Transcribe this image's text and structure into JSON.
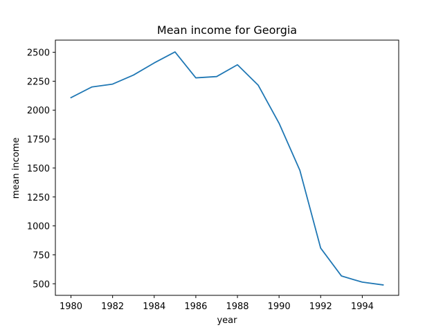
{
  "chart_data": {
    "type": "line",
    "title": "Mean income for Georgia",
    "xlabel": "year",
    "ylabel": "mean income",
    "xlim": [
      1979.25,
      1995.75
    ],
    "ylim": [
      400,
      2605
    ],
    "xticks": [
      1980,
      1982,
      1984,
      1986,
      1988,
      1990,
      1992,
      1994
    ],
    "yticks": [
      500,
      750,
      1000,
      1250,
      1500,
      1750,
      2000,
      2250,
      2500
    ],
    "grid": false,
    "line_color": "#1f77b4",
    "series": [
      {
        "x": [
          1980,
          1981,
          1982,
          1983,
          1984,
          1985,
          1986,
          1987,
          1988,
          1989,
          1990,
          1991,
          1992,
          1993,
          1994,
          1995
        ],
        "values": [
          2108,
          2200,
          2225,
          2303,
          2408,
          2503,
          2279,
          2290,
          2392,
          2215,
          1887,
          1480,
          808,
          567,
          514,
          490
        ]
      }
    ]
  }
}
